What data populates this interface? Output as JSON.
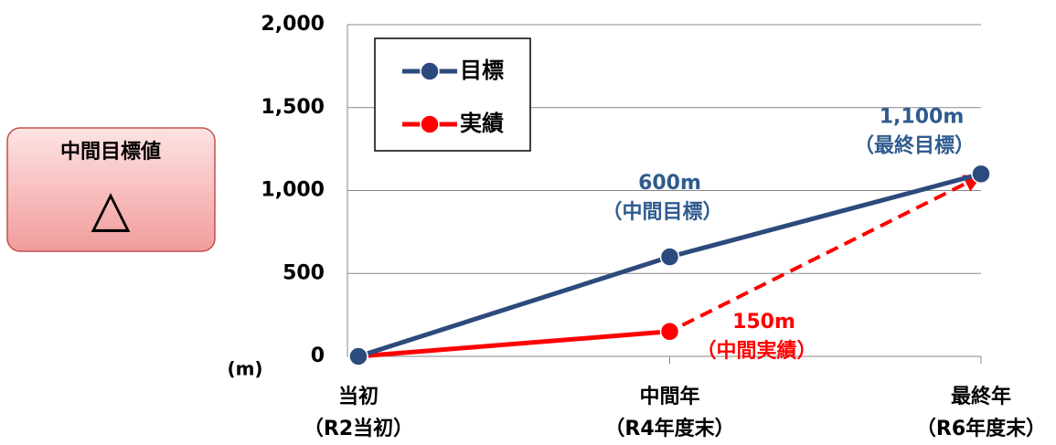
{
  "badge": {
    "title": "中間目標値",
    "symbol": "△"
  },
  "chart_data": {
    "type": "line",
    "y_unit": "(m)",
    "categories": [
      "当初",
      "中間年",
      "最終年"
    ],
    "category_sublabels": [
      "（R2当初）",
      "（R4年度末）",
      "（R6年度末）"
    ],
    "series": [
      {
        "name": "目標",
        "color": "#2c4a7c",
        "label_color": "#2f5b8e",
        "values": [
          0,
          600,
          1100
        ],
        "value_labels": [
          null,
          "600m",
          "1,100m"
        ],
        "value_notes": [
          null,
          "（中間目標）",
          "（最終目標）"
        ]
      },
      {
        "name": "実績",
        "color": "#ff0000",
        "label_color": "#ff0000",
        "values": [
          0,
          150,
          null
        ],
        "value_labels": [
          null,
          "150m",
          null
        ],
        "value_notes": [
          null,
          "（中間実績）",
          null
        ]
      }
    ],
    "ylim": [
      0,
      2000
    ],
    "yticks": [
      0,
      500,
      {
        "value": 1000,
        "label": "1,000"
      },
      {
        "value": 1500,
        "label": "1,500"
      },
      {
        "value": 2000,
        "label": "2,000"
      }
    ],
    "grid": true,
    "legend": "top-left"
  }
}
